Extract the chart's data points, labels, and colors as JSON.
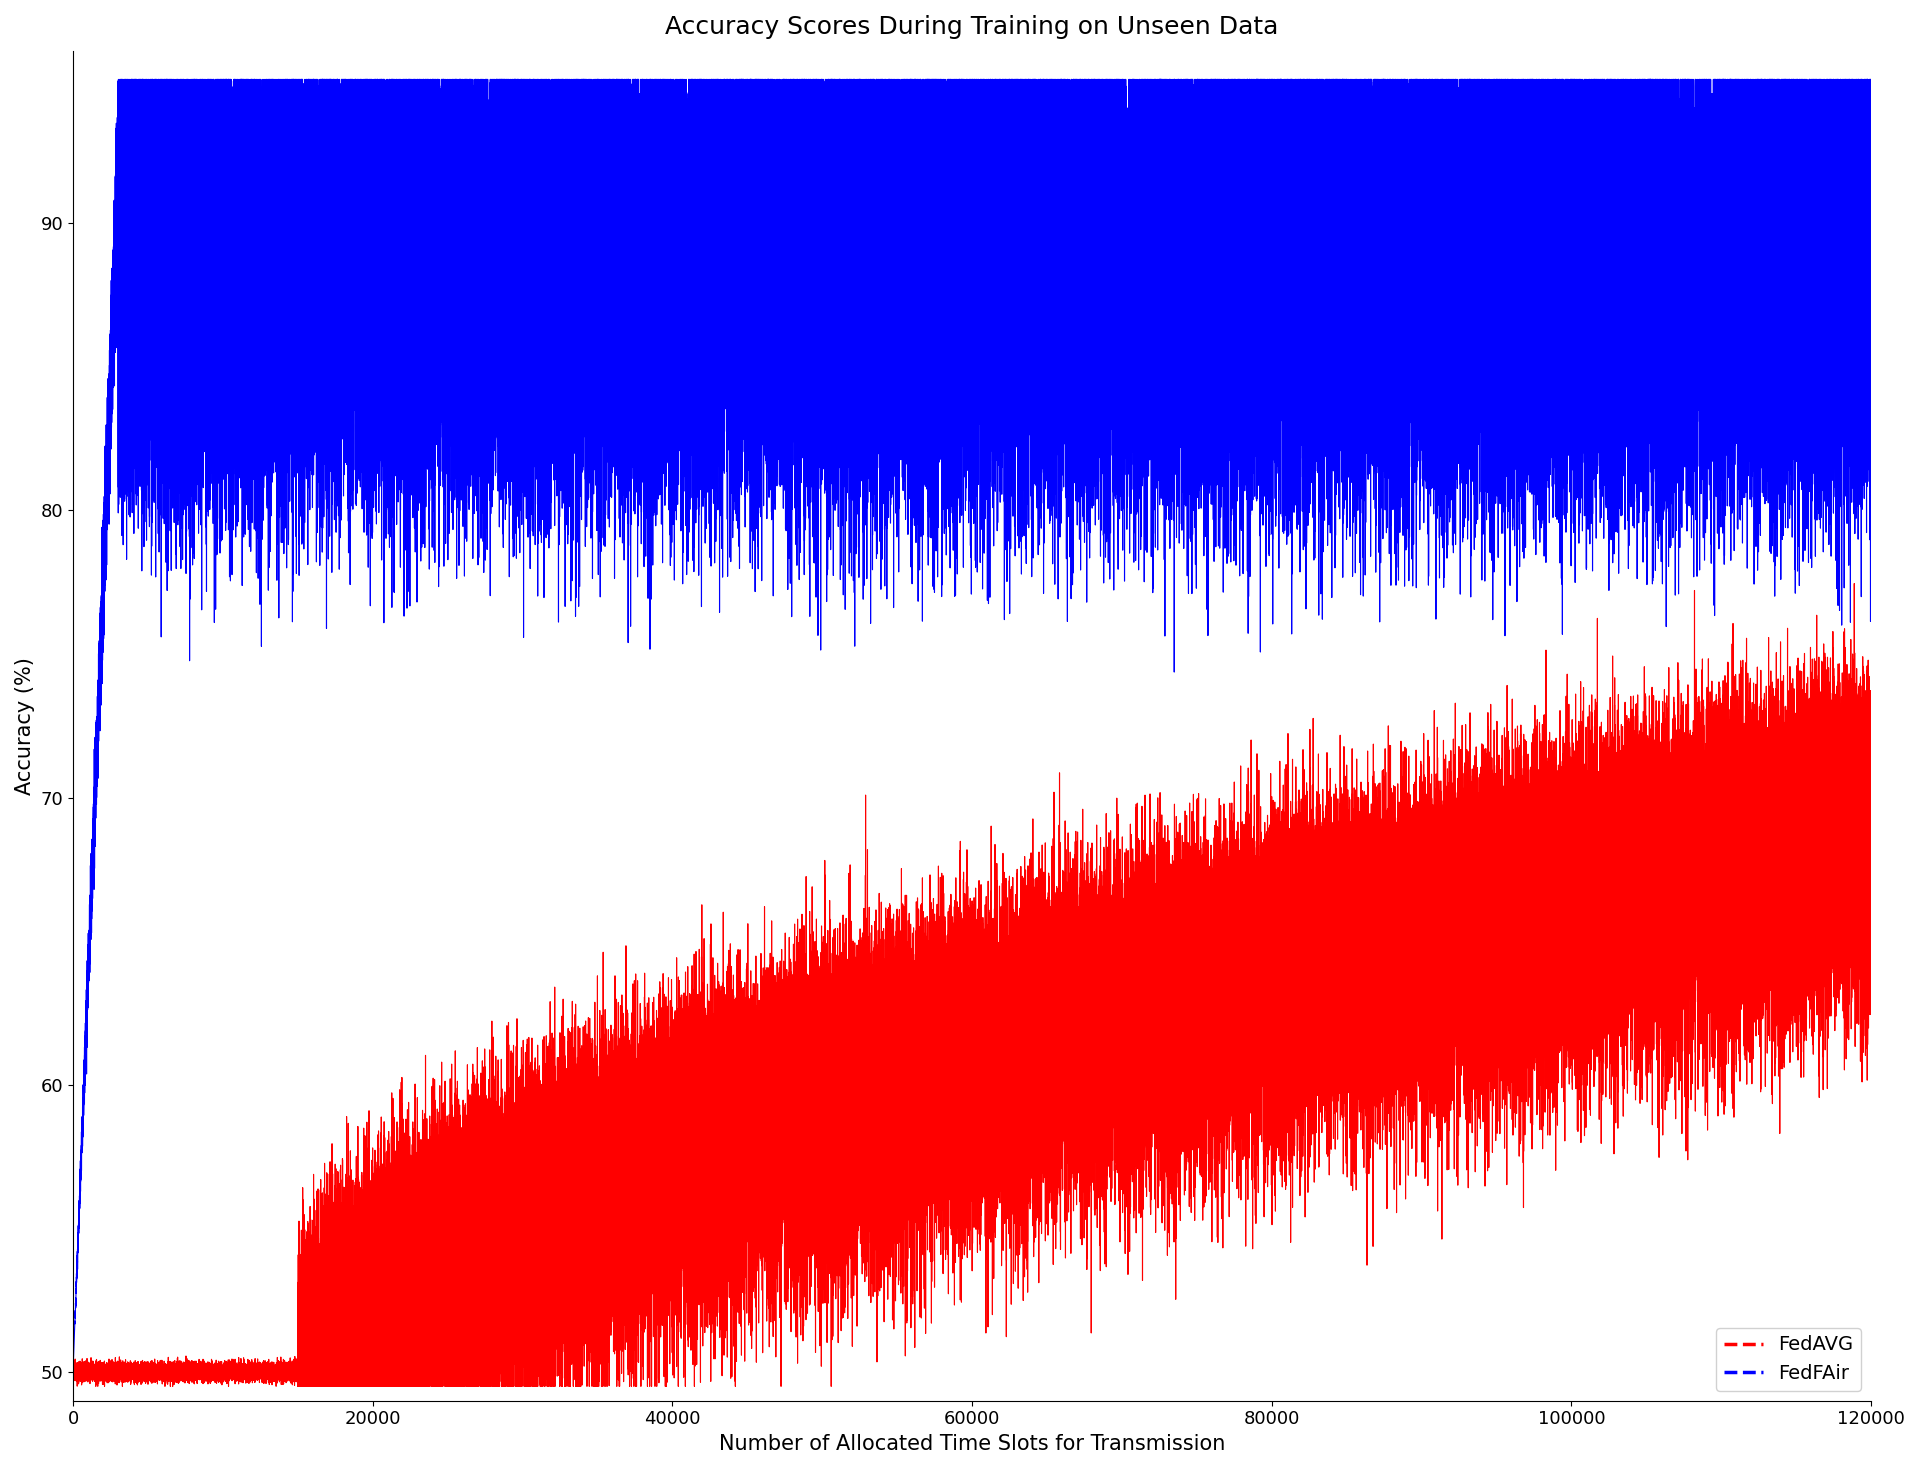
{
  "title": "Accuracy Scores During Training on Unseen Data",
  "xlabel": "Number of Allocated Time Slots for Transmission",
  "ylabel": "Accuracy (%)",
  "xlim": [
    0,
    120000
  ],
  "ylim": [
    49,
    96
  ],
  "yticks": [
    50,
    60,
    70,
    80,
    90
  ],
  "xticks": [
    0,
    20000,
    40000,
    60000,
    80000,
    100000,
    120000
  ],
  "xticklabels": [
    "0",
    "20000",
    "40000",
    "60000",
    "80000",
    "100000",
    "120000"
  ],
  "fedavg_color": "#ff0000",
  "fedfair_color": "#0000ff",
  "legend_labels": [
    "FedAVG",
    "FedFAir"
  ],
  "n_points": 120000,
  "fedfair_mean_start": 50,
  "fedfair_mean_plateau": 91,
  "fedfair_plateau_start": 3000,
  "fedfair_noise_std": 2.5,
  "fedfair_lower_envelope": 83,
  "fedavg_flat_until": 15000,
  "fedavg_start_val": 50,
  "fedavg_end_val": 70,
  "fedavg_noise_std": 2.0,
  "title_fontsize": 18,
  "label_fontsize": 15,
  "tick_fontsize": 13,
  "legend_fontsize": 14,
  "linewidth": 0.8,
  "figsize": [
    19.2,
    14.69
  ],
  "dpi": 100
}
